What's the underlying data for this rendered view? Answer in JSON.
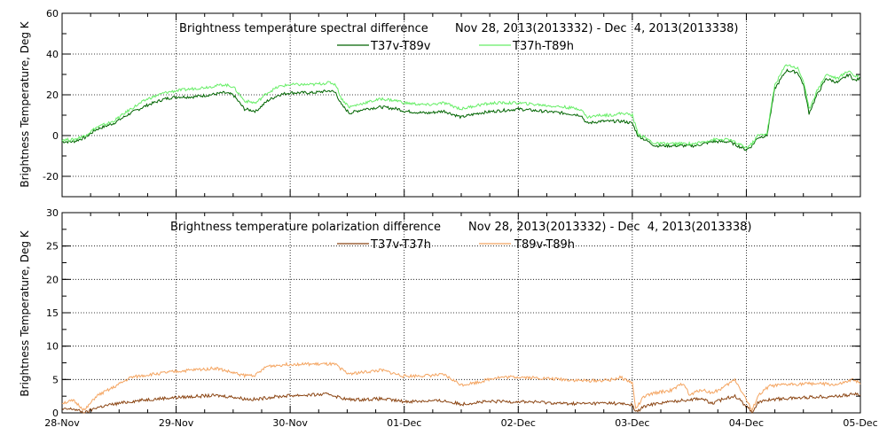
{
  "chart_data": [
    {
      "type": "line",
      "title": "Brightness temperature spectral difference",
      "date_range": "Nov 28, 2013(2013332) - Dec  4, 2013(2013338)",
      "ylabel": "Brightness Temperature, Deg K",
      "xlabel": "",
      "ylim": [
        -30,
        60
      ],
      "yticks": [
        -20,
        0,
        20,
        40,
        60
      ],
      "grid": true,
      "legend": "top-center",
      "x_ticks": [
        "28-Nov",
        "29-Nov",
        "30-Nov",
        "01-Dec",
        "02-Dec",
        "03-Dec",
        "04-Dec",
        "05-Dec"
      ],
      "x_unit": "days since 28-Nov 00:00",
      "series": [
        {
          "name": "T37v-T89v",
          "color": "#006400",
          "points": [
            [
              0,
              -3
            ],
            [
              0.1,
              -3
            ],
            [
              0.2,
              -1
            ],
            [
              0.3,
              3
            ],
            [
              0.45,
              6
            ],
            [
              0.6,
              11
            ],
            [
              0.75,
              15
            ],
            [
              0.9,
              18
            ],
            [
              1.0,
              19
            ],
            [
              1.15,
              19
            ],
            [
              1.3,
              20
            ],
            [
              1.42,
              21
            ],
            [
              1.5,
              20
            ],
            [
              1.6,
              13
            ],
            [
              1.7,
              12
            ],
            [
              1.8,
              17
            ],
            [
              1.9,
              20
            ],
            [
              2.0,
              21
            ],
            [
              2.2,
              21
            ],
            [
              2.35,
              22
            ],
            [
              2.4,
              21
            ],
            [
              2.45,
              15
            ],
            [
              2.52,
              11
            ],
            [
              2.65,
              13
            ],
            [
              2.8,
              14
            ],
            [
              2.95,
              13
            ],
            [
              3.0,
              12
            ],
            [
              3.2,
              11
            ],
            [
              3.35,
              12
            ],
            [
              3.5,
              9
            ],
            [
              3.65,
              11
            ],
            [
              3.8,
              12
            ],
            [
              4.0,
              13
            ],
            [
              4.2,
              12
            ],
            [
              4.4,
              11
            ],
            [
              4.55,
              10
            ],
            [
              4.6,
              6
            ],
            [
              4.72,
              7
            ],
            [
              4.8,
              7
            ],
            [
              4.92,
              7
            ],
            [
              5.0,
              6
            ],
            [
              5.05,
              0
            ],
            [
              5.2,
              -5
            ],
            [
              5.4,
              -5
            ],
            [
              5.55,
              -5
            ],
            [
              5.7,
              -3
            ],
            [
              5.85,
              -3
            ],
            [
              6.0,
              -7
            ],
            [
              6.05,
              -5
            ],
            [
              6.1,
              -1
            ],
            [
              6.18,
              0
            ],
            [
              6.25,
              23
            ],
            [
              6.35,
              32
            ],
            [
              6.45,
              31
            ],
            [
              6.5,
              25
            ],
            [
              6.55,
              11
            ],
            [
              6.62,
              20
            ],
            [
              6.7,
              28
            ],
            [
              6.8,
              26
            ],
            [
              6.9,
              30
            ],
            [
              6.95,
              27
            ],
            [
              7.0,
              28
            ]
          ]
        },
        {
          "name": "T37h-T89h",
          "color": "#66ee66",
          "points": [
            [
              0,
              -2
            ],
            [
              0.1,
              -2
            ],
            [
              0.2,
              0
            ],
            [
              0.3,
              4
            ],
            [
              0.45,
              7
            ],
            [
              0.6,
              13
            ],
            [
              0.75,
              18
            ],
            [
              0.9,
              21
            ],
            [
              1.0,
              22
            ],
            [
              1.15,
              23
            ],
            [
              1.3,
              24
            ],
            [
              1.42,
              25
            ],
            [
              1.5,
              24
            ],
            [
              1.6,
              17
            ],
            [
              1.7,
              16
            ],
            [
              1.8,
              21
            ],
            [
              1.9,
              24
            ],
            [
              2.0,
              25
            ],
            [
              2.2,
              25
            ],
            [
              2.35,
              26
            ],
            [
              2.4,
              25
            ],
            [
              2.45,
              18
            ],
            [
              2.52,
              14
            ],
            [
              2.65,
              16
            ],
            [
              2.8,
              18
            ],
            [
              2.95,
              17
            ],
            [
              3.0,
              16
            ],
            [
              3.2,
              15
            ],
            [
              3.35,
              16
            ],
            [
              3.5,
              13
            ],
            [
              3.65,
              15
            ],
            [
              3.8,
              16
            ],
            [
              4.0,
              16
            ],
            [
              4.2,
              15
            ],
            [
              4.4,
              14
            ],
            [
              4.55,
              13
            ],
            [
              4.6,
              9
            ],
            [
              4.72,
              10
            ],
            [
              4.8,
              10
            ],
            [
              4.92,
              11
            ],
            [
              5.0,
              10
            ],
            [
              5.05,
              1
            ],
            [
              5.2,
              -4
            ],
            [
              5.4,
              -4
            ],
            [
              5.55,
              -4
            ],
            [
              5.7,
              -2
            ],
            [
              5.85,
              -2
            ],
            [
              6.0,
              -6
            ],
            [
              6.05,
              -4
            ],
            [
              6.1,
              0
            ],
            [
              6.18,
              1
            ],
            [
              6.25,
              25
            ],
            [
              6.35,
              35
            ],
            [
              6.45,
              33
            ],
            [
              6.5,
              27
            ],
            [
              6.55,
              13
            ],
            [
              6.62,
              22
            ],
            [
              6.7,
              30
            ],
            [
              6.8,
              28
            ],
            [
              6.9,
              32
            ],
            [
              6.95,
              29
            ],
            [
              7.0,
              30
            ]
          ]
        }
      ]
    },
    {
      "type": "line",
      "title": "Brightness temperature polarization difference",
      "date_range": "Nov 28, 2013(2013332) - Dec  4, 2013(2013338)",
      "ylabel": "Brightness Temperature, Deg K",
      "xlabel": "",
      "ylim": [
        0,
        30
      ],
      "yticks": [
        0,
        5,
        10,
        15,
        20,
        25,
        30
      ],
      "grid": true,
      "legend": "top-center",
      "x_ticks": [
        "28-Nov",
        "29-Nov",
        "30-Nov",
        "01-Dec",
        "02-Dec",
        "03-Dec",
        "04-Dec",
        "05-Dec"
      ],
      "series": [
        {
          "name": "T37v-T37h",
          "color": "#8b4513",
          "points": [
            [
              0,
              0.5
            ],
            [
              0.1,
              0.6
            ],
            [
              0.2,
              0.0
            ],
            [
              0.3,
              0.8
            ],
            [
              0.45,
              1.3
            ],
            [
              0.6,
              1.7
            ],
            [
              0.75,
              2.0
            ],
            [
              0.9,
              2.2
            ],
            [
              1.0,
              2.3
            ],
            [
              1.2,
              2.5
            ],
            [
              1.35,
              2.6
            ],
            [
              1.5,
              2.4
            ],
            [
              1.6,
              2.1
            ],
            [
              1.7,
              2.0
            ],
            [
              1.8,
              2.3
            ],
            [
              2.0,
              2.6
            ],
            [
              2.2,
              2.7
            ],
            [
              2.35,
              2.8
            ],
            [
              2.4,
              2.5
            ],
            [
              2.5,
              2.0
            ],
            [
              2.6,
              2.0
            ],
            [
              2.8,
              2.1
            ],
            [
              3.0,
              1.7
            ],
            [
              3.2,
              1.8
            ],
            [
              3.35,
              1.8
            ],
            [
              3.5,
              1.3
            ],
            [
              3.65,
              1.6
            ],
            [
              3.8,
              1.7
            ],
            [
              4.0,
              1.7
            ],
            [
              4.2,
              1.6
            ],
            [
              4.4,
              1.4
            ],
            [
              4.6,
              1.4
            ],
            [
              4.8,
              1.5
            ],
            [
              5.0,
              1.2
            ],
            [
              5.03,
              0.1
            ],
            [
              5.1,
              0.9
            ],
            [
              5.2,
              1.4
            ],
            [
              5.35,
              1.7
            ],
            [
              5.5,
              2.0
            ],
            [
              5.6,
              2.2
            ],
            [
              5.7,
              1.4
            ],
            [
              5.8,
              2.1
            ],
            [
              5.9,
              2.6
            ],
            [
              6.0,
              1.0
            ],
            [
              6.05,
              0.1
            ],
            [
              6.1,
              1.5
            ],
            [
              6.2,
              2.0
            ],
            [
              6.4,
              2.2
            ],
            [
              6.6,
              2.4
            ],
            [
              6.8,
              2.5
            ],
            [
              6.95,
              2.8
            ],
            [
              7.0,
              2.7
            ]
          ]
        },
        {
          "name": "T89v-T89h",
          "color": "#f4a460",
          "points": [
            [
              0,
              1.5
            ],
            [
              0.1,
              1.8
            ],
            [
              0.2,
              0.4
            ],
            [
              0.3,
              2.5
            ],
            [
              0.45,
              3.8
            ],
            [
              0.6,
              5.3
            ],
            [
              0.75,
              5.7
            ],
            [
              0.9,
              6.0
            ],
            [
              1.0,
              6.2
            ],
            [
              1.2,
              6.5
            ],
            [
              1.35,
              6.7
            ],
            [
              1.5,
              6.0
            ],
            [
              1.6,
              5.6
            ],
            [
              1.7,
              5.7
            ],
            [
              1.8,
              7.0
            ],
            [
              2.0,
              7.3
            ],
            [
              2.2,
              7.3
            ],
            [
              2.35,
              7.3
            ],
            [
              2.4,
              7.2
            ],
            [
              2.5,
              5.9
            ],
            [
              2.6,
              6.0
            ],
            [
              2.8,
              6.4
            ],
            [
              3.0,
              5.5
            ],
            [
              3.2,
              5.6
            ],
            [
              3.35,
              5.7
            ],
            [
              3.5,
              4.2
            ],
            [
              3.65,
              4.6
            ],
            [
              3.8,
              5.3
            ],
            [
              4.0,
              5.4
            ],
            [
              4.2,
              5.2
            ],
            [
              4.4,
              5.0
            ],
            [
              4.6,
              4.8
            ],
            [
              4.8,
              4.9
            ],
            [
              4.9,
              5.3
            ],
            [
              5.0,
              4.5
            ],
            [
              5.03,
              0.6
            ],
            [
              5.1,
              2.4
            ],
            [
              5.2,
              3.0
            ],
            [
              5.35,
              3.4
            ],
            [
              5.45,
              4.5
            ],
            [
              5.5,
              2.6
            ],
            [
              5.6,
              3.5
            ],
            [
              5.7,
              3.0
            ],
            [
              5.8,
              3.8
            ],
            [
              5.9,
              5.0
            ],
            [
              6.0,
              2.0
            ],
            [
              6.05,
              0.3
            ],
            [
              6.1,
              2.5
            ],
            [
              6.2,
              4.0
            ],
            [
              6.4,
              4.3
            ],
            [
              6.6,
              4.4
            ],
            [
              6.8,
              4.2
            ],
            [
              6.95,
              5.0
            ],
            [
              7.0,
              4.3
            ]
          ]
        }
      ]
    }
  ]
}
